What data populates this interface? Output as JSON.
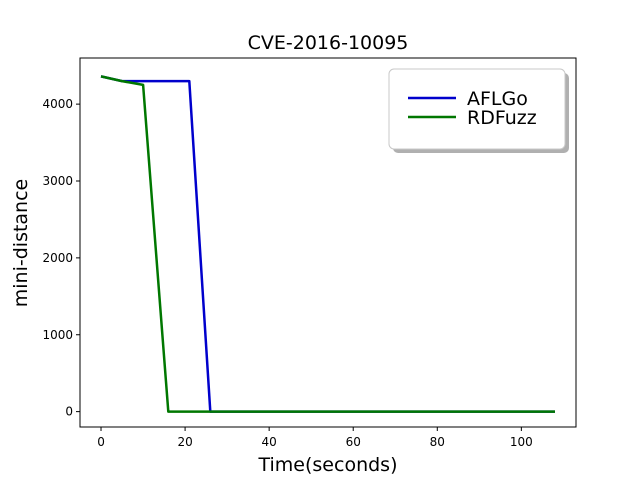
{
  "chart_data": {
    "type": "line",
    "title": "CVE-2016-10095",
    "xlabel": "Time(seconds)",
    "ylabel": "mini-distance",
    "xlim": [
      -5,
      113
    ],
    "ylim": [
      -200,
      4600
    ],
    "xticks": [
      0,
      20,
      40,
      60,
      80,
      100
    ],
    "yticks": [
      0,
      1000,
      2000,
      3000,
      4000
    ],
    "grid": false,
    "legend_position": "top-right",
    "series": [
      {
        "name": "AFLGo",
        "color": "#0000cc",
        "x": [
          0,
          5,
          21,
          26,
          108
        ],
        "y": [
          4360,
          4300,
          4300,
          0,
          0
        ]
      },
      {
        "name": "RDFuzz",
        "color": "#007700",
        "x": [
          0,
          5,
          10,
          16,
          108
        ],
        "y": [
          4360,
          4300,
          4250,
          0,
          0
        ]
      }
    ]
  }
}
